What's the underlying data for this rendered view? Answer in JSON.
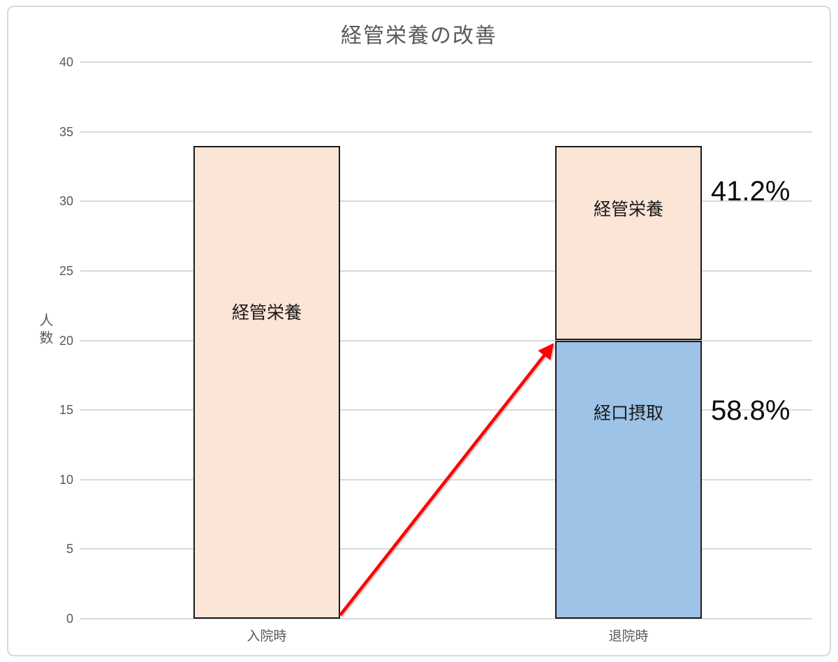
{
  "chart_data": {
    "type": "bar",
    "stacked": true,
    "title": "経管栄養の改善",
    "xlabel": "",
    "ylabel": "人数",
    "categories": [
      "入院時",
      "退院時"
    ],
    "series": [
      {
        "name": "経口摂取",
        "color": "#9DC3E6",
        "values": [
          0,
          20
        ]
      },
      {
        "name": "経管栄養",
        "color": "#FBE5D6",
        "values": [
          34,
          14
        ]
      }
    ],
    "ylim": [
      0,
      40
    ],
    "ytick_step": 5,
    "grid": true,
    "legend": "none",
    "bar_border_color": "#1A1A1A",
    "annotations": [
      {
        "text": "41.2%",
        "refers_to": "退院時 経管栄養"
      },
      {
        "text": "58.8%",
        "refers_to": "退院時 経口摂取"
      }
    ],
    "arrow": {
      "color": "#FF0000",
      "from": "入院時 bar bottom-right",
      "to": "退院時 経口摂取 top-left"
    }
  }
}
